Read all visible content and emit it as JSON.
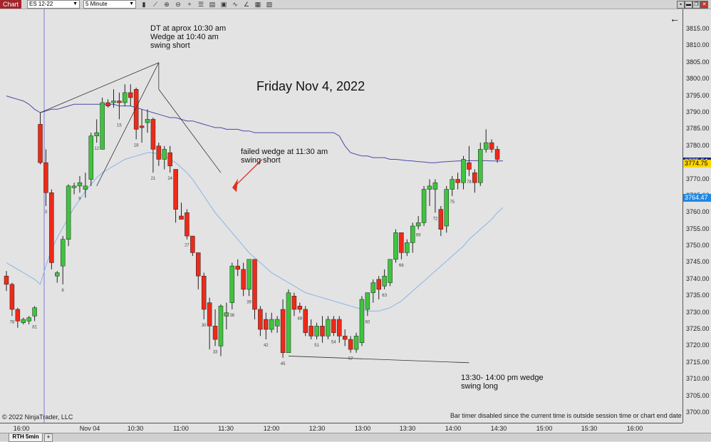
{
  "toolbar": {
    "chart_tab": "Chart",
    "instrument": "ES 12-22",
    "interval": "5 Minute"
  },
  "chart": {
    "title": "Friday Nov 4, 2022",
    "annotations": {
      "a1_line1": "DT at aprox 10:30 am",
      "a1_line2": "Wedge at 10:40 am",
      "a1_line3": "swing short",
      "a2_line1": "failed wedge at 11:30 am",
      "a2_line2": "swing short",
      "a3_line1": "13:30- 14:00 pm wedge",
      "a3_line2": "swing long"
    },
    "copyright": "© 2022 NinjaTrader, LLC",
    "bar_timer": "Bar timer disabled since the current time is outside session time or chart end date",
    "back_arrow": "←"
  },
  "bottom": {
    "tab": "RTH 5min",
    "add": "+"
  },
  "chart_data": {
    "type": "candlestick",
    "instrument": "ES 12-22",
    "interval": "5 Minute",
    "ylim": [
      3697,
      3821
    ],
    "y_ticks": [
      "3815.00",
      "3810.00",
      "3805.00",
      "3800.00",
      "3795.00",
      "3790.00",
      "3785.00",
      "3780.00",
      "3775.00",
      "3770.00",
      "3765.00",
      "3760.00",
      "3755.00",
      "3750.00",
      "3745.00",
      "3740.00",
      "3735.00",
      "3730.00",
      "3725.00",
      "3720.00",
      "3715.00",
      "3710.00",
      "3705.00",
      "3700.00"
    ],
    "y_tick_values": [
      3815,
      3810,
      3805,
      3800,
      3795,
      3790,
      3785,
      3780,
      3775,
      3770,
      3765,
      3760,
      3755,
      3750,
      3745,
      3740,
      3735,
      3730,
      3725,
      3720,
      3715,
      3710,
      3705,
      3700
    ],
    "x_ticks": [
      "16:00",
      "Nov 04",
      "10:30",
      "11:00",
      "11:30",
      "12:00",
      "12:30",
      "13:00",
      "13:30",
      "14:00",
      "14:30",
      "15:00",
      "15:30",
      "16:00"
    ],
    "price_tags": [
      {
        "label": "3775.54",
        "value": 3775.54,
        "color": "#1a237e"
      },
      {
        "label": "3774.75",
        "value": 3774.75,
        "color": "#ffd700"
      },
      {
        "label": "3764.47",
        "value": 3764.47,
        "color": "#1e88e5"
      }
    ],
    "bar_numbers": [
      {
        "i": 1,
        "t": "78"
      },
      {
        "i": 5,
        "t": "81"
      },
      {
        "i": 7,
        "t": "3"
      },
      {
        "i": 10,
        "t": "6"
      },
      {
        "i": 13,
        "t": "9"
      },
      {
        "i": 16,
        "t": "12"
      },
      {
        "i": 20,
        "t": "15"
      },
      {
        "i": 23,
        "t": "18"
      },
      {
        "i": 26,
        "t": "21"
      },
      {
        "i": 29,
        "t": "24"
      },
      {
        "i": 32,
        "t": "27"
      },
      {
        "i": 35,
        "t": "30"
      },
      {
        "i": 37,
        "t": "33"
      },
      {
        "i": 40,
        "t": "36"
      },
      {
        "i": 43,
        "t": "39"
      },
      {
        "i": 46,
        "t": "42"
      },
      {
        "i": 49,
        "t": "45"
      },
      {
        "i": 52,
        "t": "48"
      },
      {
        "i": 55,
        "t": "51"
      },
      {
        "i": 58,
        "t": "54"
      },
      {
        "i": 61,
        "t": "57"
      },
      {
        "i": 64,
        "t": "60"
      },
      {
        "i": 67,
        "t": "63"
      },
      {
        "i": 70,
        "t": "66"
      },
      {
        "i": 73,
        "t": "69"
      },
      {
        "i": 76,
        "t": "72"
      },
      {
        "i": 79,
        "t": "75"
      },
      {
        "i": 82,
        "t": "78"
      }
    ],
    "candles": [
      [
        3741,
        3738.5,
        3742.5,
        3736.5
      ],
      [
        3738.5,
        3731,
        3739,
        3729
      ],
      [
        3731,
        3727.5,
        3731.5,
        3725.5
      ],
      [
        3727,
        3728,
        3728.5,
        3726.5
      ],
      [
        3727.5,
        3728.5,
        3729,
        3726.5
      ],
      [
        3729,
        3731.5,
        3732,
        3727.5
      ],
      [
        3786.5,
        3775,
        3790,
        3774.5
      ],
      [
        3775,
        3766,
        3779,
        3762
      ],
      [
        3766,
        3745,
        3767,
        3743
      ],
      [
        3741,
        3742,
        3742.5,
        3739
      ],
      [
        3744,
        3752,
        3753,
        3738.5
      ],
      [
        3752,
        3768,
        3768.5,
        3750
      ],
      [
        3767.5,
        3768,
        3769,
        3765.5
      ],
      [
        3768,
        3769,
        3771,
        3766
      ],
      [
        3767,
        3768,
        3772,
        3764.5
      ],
      [
        3770,
        3783,
        3784,
        3768
      ],
      [
        3783,
        3784,
        3788,
        3781
      ],
      [
        3779,
        3793,
        3794.5,
        3779
      ],
      [
        3793,
        3792,
        3794,
        3791.5
      ],
      [
        3793,
        3793.5,
        3797,
        3791.5
      ],
      [
        3793.5,
        3793,
        3796,
        3788
      ],
      [
        3793,
        3796,
        3798.5,
        3792
      ],
      [
        3796,
        3794.5,
        3798.5,
        3792
      ],
      [
        3797,
        3785,
        3797.5,
        3782
      ],
      [
        3786,
        3785.5,
        3791,
        3781
      ],
      [
        3787,
        3788,
        3791,
        3784
      ],
      [
        3788,
        3779,
        3788.5,
        3772
      ],
      [
        3780,
        3776,
        3781,
        3774
      ],
      [
        3776,
        3779,
        3780,
        3773
      ],
      [
        3778,
        3774,
        3780,
        3772
      ],
      [
        3773,
        3761,
        3773,
        3757
      ],
      [
        3759,
        3758,
        3763,
        3758
      ],
      [
        3760,
        3753,
        3761,
        3752
      ],
      [
        3753,
        3748,
        3753,
        3747
      ],
      [
        3748,
        3741,
        3748,
        3737
      ],
      [
        3741,
        3731,
        3742,
        3728
      ],
      [
        3733,
        3726,
        3734.5,
        3719
      ],
      [
        3726,
        3722,
        3731,
        3720
      ],
      [
        3720,
        3732,
        3732.5,
        3717
      ],
      [
        3729,
        3730,
        3733,
        3725
      ],
      [
        3733,
        3744,
        3745,
        3731
      ],
      [
        3744,
        3743,
        3746,
        3741
      ],
      [
        3743,
        3737,
        3745,
        3735
      ],
      [
        3737,
        3746,
        3746,
        3735
      ],
      [
        3746,
        3731,
        3746,
        3728
      ],
      [
        3731,
        3725,
        3732,
        3723
      ],
      [
        3728,
        3725,
        3730,
        3722
      ],
      [
        3725,
        3728,
        3730,
        3724
      ],
      [
        3726,
        3728,
        3729,
        3724
      ],
      [
        3731,
        3718,
        3734,
        3716.5
      ],
      [
        3718,
        3736,
        3737,
        3718
      ],
      [
        3735,
        3731,
        3736,
        3729
      ],
      [
        3732,
        3731,
        3733,
        3730
      ],
      [
        3731,
        3724,
        3732,
        3723
      ],
      [
        3726,
        3723,
        3728,
        3722
      ],
      [
        3723,
        3726,
        3727,
        3722
      ],
      [
        3726,
        3723,
        3729,
        3721
      ],
      [
        3723,
        3728,
        3729,
        3722
      ],
      [
        3728,
        3724,
        3729,
        3723
      ],
      [
        3728,
        3723,
        3729,
        3721
      ],
      [
        3723,
        3722,
        3725,
        3720
      ],
      [
        3722,
        3719,
        3723,
        3718
      ],
      [
        3719,
        3723,
        3724,
        3718
      ],
      [
        3721,
        3734,
        3735,
        3720
      ],
      [
        3731,
        3736,
        3736,
        3729
      ],
      [
        3736,
        3739,
        3740,
        3733
      ],
      [
        3740,
        3737,
        3741,
        3734
      ],
      [
        3738,
        3741,
        3743,
        3737
      ],
      [
        3739,
        3746,
        3746,
        3738
      ],
      [
        3746,
        3754,
        3755,
        3745
      ],
      [
        3754,
        3748,
        3754,
        3746
      ],
      [
        3748,
        3751,
        3752,
        3747
      ],
      [
        3751,
        3756,
        3757,
        3748
      ],
      [
        3756,
        3757,
        3759,
        3755
      ],
      [
        3757,
        3767,
        3768,
        3756
      ],
      [
        3767,
        3768,
        3770,
        3762
      ],
      [
        3767,
        3769,
        3770,
        3760
      ],
      [
        3761,
        3755,
        3762,
        3753
      ],
      [
        3756,
        3767,
        3768,
        3754
      ],
      [
        3767,
        3770,
        3771,
        3765
      ],
      [
        3770,
        3769,
        3772,
        3767
      ],
      [
        3769,
        3776,
        3777,
        3767
      ],
      [
        3775,
        3773,
        3780,
        3771
      ],
      [
        3772,
        3769,
        3773,
        3766
      ],
      [
        3769,
        3779,
        3781,
        3768
      ],
      [
        3779,
        3781,
        3785,
        3778
      ],
      [
        3781,
        3779,
        3782,
        3778
      ],
      [
        3779,
        3776,
        3780,
        3775
      ]
    ],
    "upper_band": [
      3795,
      3794.5,
      3794,
      3793.5,
      3792.5,
      3791,
      3790,
      3790.5,
      3791,
      3791,
      3791.5,
      3792,
      3792.5,
      3792.5,
      3792.5,
      3792.5,
      3792.5,
      3792.5,
      3792.5,
      3792.5,
      3792,
      3792,
      3792,
      3791.5,
      3791,
      3790.5,
      3790,
      3789.5,
      3789,
      3788.5,
      3788.5,
      3788,
      3787.5,
      3787.5,
      3787,
      3786.5,
      3786,
      3785.5,
      3785.5,
      3785,
      3785,
      3785,
      3784.5,
      3784.5,
      3784,
      3784,
      3784,
      3784,
      3784,
      3784,
      3784,
      3784,
      3784,
      3784,
      3784,
      3784,
      3784,
      3784,
      3784,
      3783,
      3780,
      3778,
      3777.5,
      3777,
      3777,
      3776.5,
      3776.5,
      3776.5,
      3776,
      3776,
      3775.8,
      3775.6,
      3775.5,
      3775.3,
      3775.2,
      3775,
      3775,
      3775.2,
      3775.3,
      3775.4,
      3775.5,
      3775.5,
      3775.6,
      3775.6,
      3775.6,
      3775.6,
      3775.5,
      3775.5,
      3775.5
    ],
    "lower_band": [
      3745,
      3744,
      3743,
      3742,
      3741,
      3740,
      3738.5,
      3744,
      3749,
      3752.5,
      3755.5,
      3758.5,
      3761.5,
      3764,
      3766.5,
      3768.5,
      3770.5,
      3772,
      3773,
      3774,
      3775,
      3776,
      3776.5,
      3777,
      3777.5,
      3778,
      3778,
      3777.5,
      3777,
      3776,
      3775,
      3773.5,
      3772,
      3770,
      3767.5,
      3765,
      3762.5,
      3760,
      3758,
      3756,
      3754,
      3752,
      3750,
      3748,
      3746.5,
      3745,
      3743.5,
      3742,
      3741,
      3740,
      3739,
      3738,
      3737,
      3736,
      3735.5,
      3735,
      3734.5,
      3734,
      3733.5,
      3733,
      3732.5,
      3732,
      3731.5,
      3731,
      3730.5,
      3730.5,
      3730.5,
      3731,
      3731.5,
      3732.5,
      3733.5,
      3735,
      3736.5,
      3738,
      3739.5,
      3741,
      3742.5,
      3744,
      3745.5,
      3747,
      3748.5,
      3750,
      3752,
      3753.5,
      3755,
      3756.5,
      3758,
      3760,
      3761.5
    ]
  }
}
